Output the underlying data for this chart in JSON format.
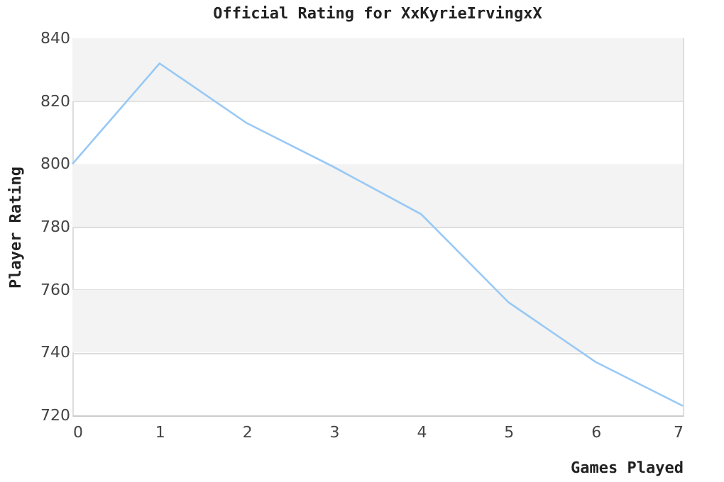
{
  "chart_data": {
    "type": "line",
    "title": "Official Rating for XxKyrieIrvingxX",
    "xlabel": "Games Played",
    "ylabel": "Player Rating",
    "x": [
      0,
      1,
      2,
      3,
      4,
      5,
      6,
      7
    ],
    "series": [
      {
        "color": "#99c9f5",
        "values": [
          800,
          832,
          813,
          799,
          784,
          756,
          737,
          723
        ]
      }
    ],
    "xlim": [
      0,
      7
    ],
    "xticks": [
      0,
      1,
      2,
      3,
      4,
      5,
      6,
      7
    ],
    "ylim": [
      720,
      840
    ],
    "yticks": [
      720,
      740,
      760,
      780,
      800,
      820,
      840
    ],
    "grid": "y",
    "marker": "none",
    "line_style": "solid"
  }
}
